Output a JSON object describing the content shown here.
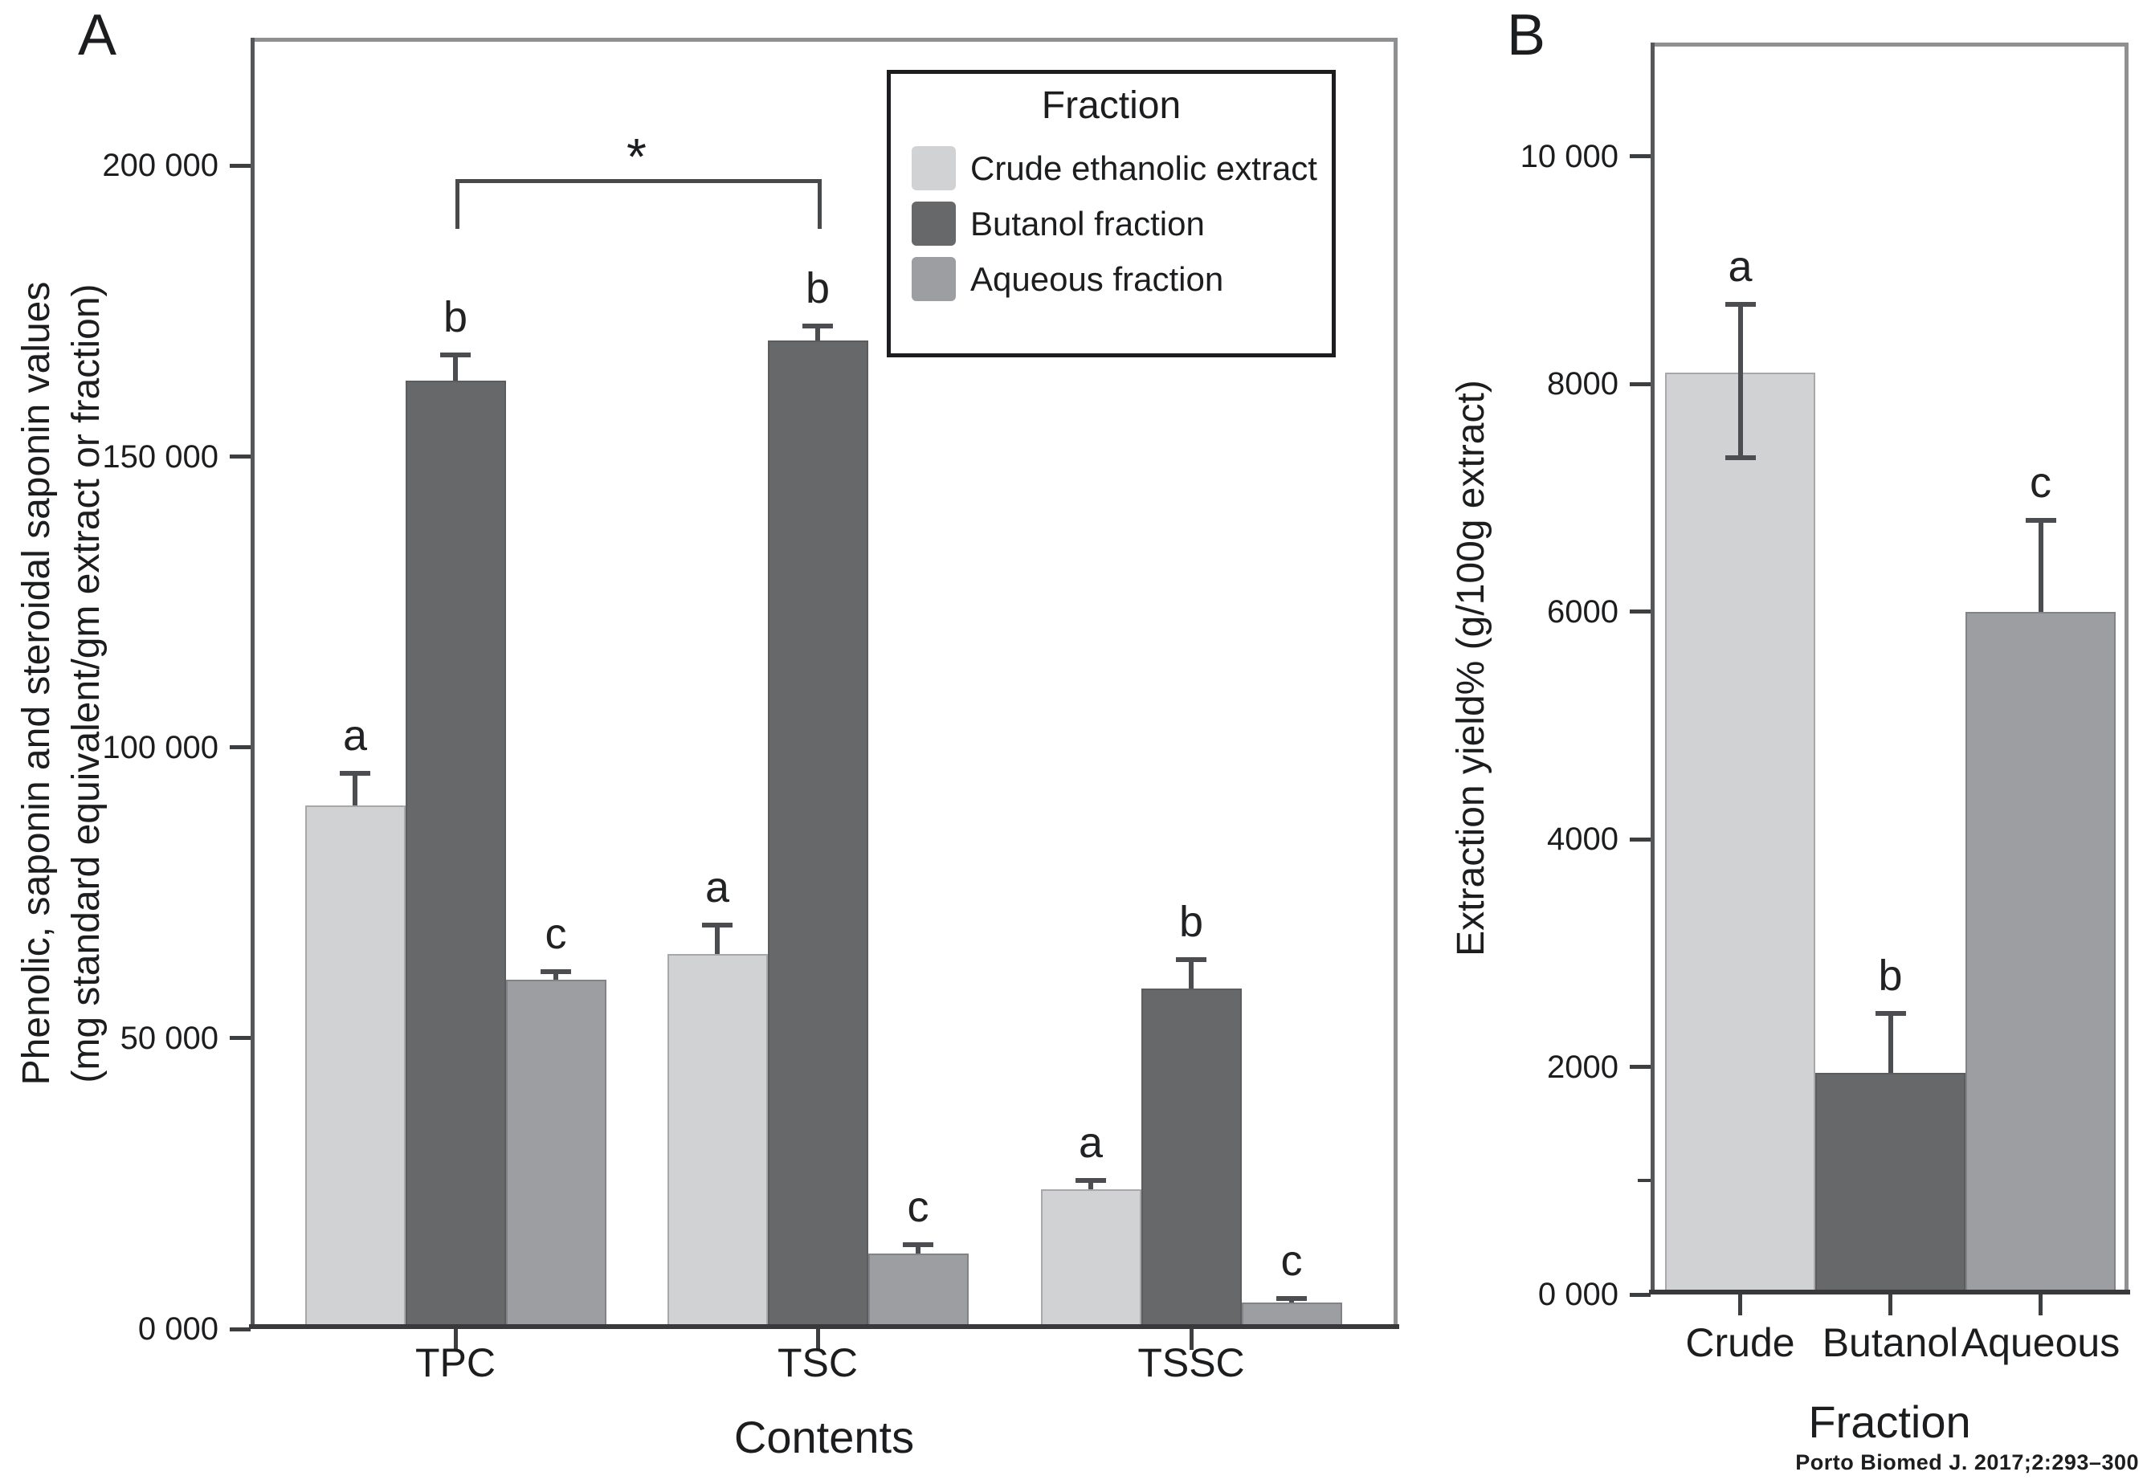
{
  "figure": {
    "panel_a_label": "A",
    "panel_b_label": "B",
    "citation": "Porto Biomed J. 2017;2:293–300",
    "background": "#ffffff"
  },
  "colors": {
    "frame": "#8e9092",
    "axis": "#3c3e40",
    "error_bar": "#4b4d50",
    "text": "#1c1d1f"
  },
  "chart_data": [
    {
      "id": "A",
      "type": "bar",
      "title": "",
      "xlabel": "Contents",
      "ylabel_line1": "Phenolic, saponin and steroidal saponin values",
      "ylabel_line2": "(mg standard equivalent/gm extract or fraction)",
      "categories": [
        "TPC",
        "TSC",
        "TSSC"
      ],
      "ylim": [
        0,
        222000
      ],
      "grid": false,
      "yticks": [
        {
          "value": 0,
          "label": "0 000"
        },
        {
          "value": 50000,
          "label": "50 000"
        },
        {
          "value": 100000,
          "label": "100 000"
        },
        {
          "value": 150000,
          "label": "150 000"
        },
        {
          "value": 200000,
          "label": "200 000"
        }
      ],
      "legend": {
        "title": "Fraction",
        "position": "top-right"
      },
      "series": [
        {
          "name": "Crude ethanolic extract",
          "color": "#d1d2d4",
          "values": [
            90000,
            64500,
            24000
          ],
          "error_top": [
            95500,
            69500,
            25500
          ],
          "letters": [
            "a",
            "a",
            "a"
          ]
        },
        {
          "name": "Butanol fraction",
          "color": "#66686a",
          "values": [
            163000,
            170000,
            58500
          ],
          "error_top": [
            167500,
            172500,
            63500
          ],
          "letters": [
            "b",
            "b",
            "b"
          ]
        },
        {
          "name": "Aqueous fraction",
          "color": "#9c9ea1",
          "values": [
            60000,
            13000,
            4500
          ],
          "error_top": [
            61500,
            14500,
            5200
          ],
          "letters": [
            "c",
            "c",
            "c"
          ]
        }
      ],
      "significance_bracket": {
        "label": "*",
        "series": "Butanol fraction",
        "from_category": "TPC",
        "to_category": "TSC",
        "y_value": 197000,
        "drop_value": 8500
      }
    },
    {
      "id": "B",
      "type": "bar",
      "title": "",
      "xlabel": "Fraction",
      "ylabel": "Extraction yield% (g/100g extract)",
      "categories": [
        "Crude",
        "Butanol",
        "Aqueous"
      ],
      "ylim": [
        0,
        11000
      ],
      "grid": false,
      "yticks": [
        {
          "value": 0,
          "label": "0 000"
        },
        {
          "value": 2000,
          "label": "2000"
        },
        {
          "value": 4000,
          "label": "4000"
        },
        {
          "value": 6000,
          "label": "6000"
        },
        {
          "value": 8000,
          "label": "8000"
        },
        {
          "value": 10000,
          "label": "10 000"
        }
      ],
      "minor_yticks": [
        1000
      ],
      "bars": [
        {
          "category": "Crude",
          "color": "#d1d2d4",
          "value": 8100,
          "error_top": 8700,
          "error_bottom": 7350,
          "letter": "a"
        },
        {
          "category": "Butanol",
          "color": "#66686a",
          "value": 1950,
          "error_top": 2470,
          "letter": "b"
        },
        {
          "category": "Aqueous",
          "color": "#9c9ea1",
          "value": 6000,
          "error_top": 6800,
          "letter": "c"
        }
      ]
    }
  ]
}
